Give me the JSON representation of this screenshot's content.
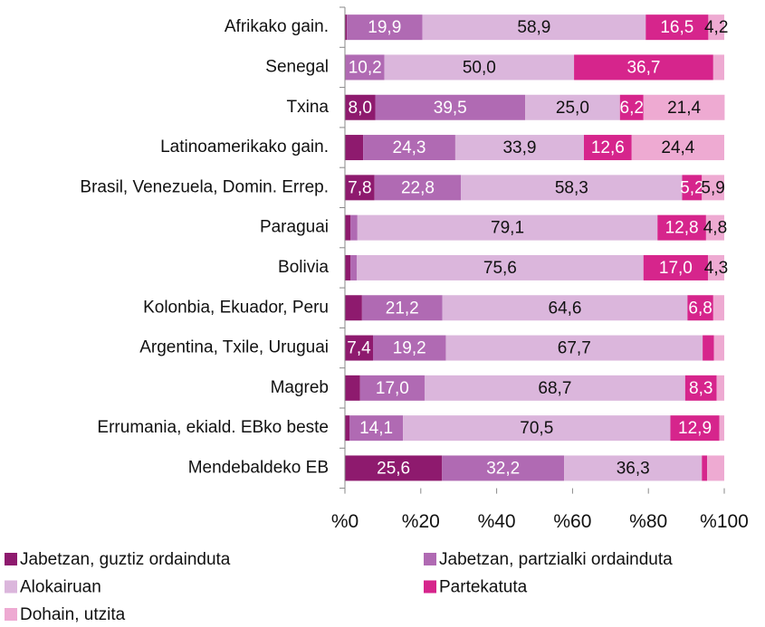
{
  "chart_data": {
    "type": "stacked_bar_horizontal",
    "categories": [
      "Afrikako gain.",
      "Senegal",
      "Txina",
      "Latinoamerikako gain.",
      "Brasil, Venezuela, Domin. Errep.",
      "Paraguai",
      "Bolivia",
      "Kolonbia, Ekuador, Peru",
      "Argentina, Txile, Uruguai",
      "Magreb",
      "Errumania, ekiald. EBko beste",
      "Mendebaldeko EB"
    ],
    "series": [
      {
        "name": "Jabetzan, guztiz ordainduta",
        "color": "#8e1a6e",
        "label_color": "#ffffff",
        "values": [
          0.5,
          0.2,
          8.0,
          4.8,
          7.8,
          1.5,
          1.5,
          4.5,
          7.4,
          4.0,
          1.2,
          25.6
        ],
        "value_labels": [
          null,
          null,
          "8,0",
          null,
          "7,8",
          null,
          null,
          null,
          "7,4",
          null,
          null,
          "25,6"
        ]
      },
      {
        "name": "Jabetzan, partzialki ordainduta",
        "color": "#b06ab3",
        "label_color": "#ffffff",
        "values": [
          19.9,
          10.2,
          39.5,
          24.3,
          22.8,
          1.8,
          1.6,
          21.2,
          19.2,
          17.0,
          14.1,
          32.2
        ],
        "value_labels": [
          "19,9",
          "10,2",
          "39,5",
          "24,3",
          "22,8",
          null,
          null,
          "21,2",
          "19,2",
          "17,0",
          "14,1",
          "32,2"
        ]
      },
      {
        "name": "Alokairuan",
        "color": "#dbb6dc",
        "label_color": "#111111",
        "values": [
          58.9,
          50.0,
          25.0,
          33.9,
          58.3,
          79.1,
          75.6,
          64.6,
          67.7,
          68.7,
          70.5,
          36.3
        ],
        "value_labels": [
          "58,9",
          "50,0",
          "25,0",
          "33,9",
          "58,3",
          "79,1",
          "75,6",
          "64,6",
          "67,7",
          "68,7",
          "70,5",
          "36,3"
        ]
      },
      {
        "name": "Partekatuta",
        "color": "#d6258c",
        "label_color": "#ffffff",
        "values": [
          16.5,
          36.7,
          6.2,
          12.6,
          5.2,
          12.8,
          17.0,
          6.8,
          3.0,
          8.3,
          12.9,
          1.4
        ],
        "value_labels": [
          "16,5",
          "36,7",
          "6,2",
          "12,6",
          "5,2",
          "12,8",
          "17,0",
          "6,8",
          null,
          "8,3",
          "12,9",
          null
        ]
      },
      {
        "name": "Dohain, utzita",
        "color": "#eeaad2",
        "label_color": "#111111",
        "values": [
          4.2,
          2.9,
          21.4,
          24.4,
          5.9,
          4.8,
          4.3,
          2.9,
          2.7,
          2.0,
          1.3,
          4.5
        ],
        "value_labels": [
          "4,2",
          null,
          "21,4",
          "24,4",
          "5,9",
          "4,8",
          "4,3",
          null,
          null,
          null,
          null,
          null
        ]
      }
    ],
    "xlim": [
      0,
      100
    ],
    "xticks": [
      {
        "value": 0,
        "label": "%0"
      },
      {
        "value": 20,
        "label": "%20"
      },
      {
        "value": 40,
        "label": "%40"
      },
      {
        "value": 60,
        "label": "%60"
      },
      {
        "value": 80,
        "label": "%80"
      },
      {
        "value": 100,
        "label": "%100"
      }
    ],
    "legend": "bottom"
  }
}
